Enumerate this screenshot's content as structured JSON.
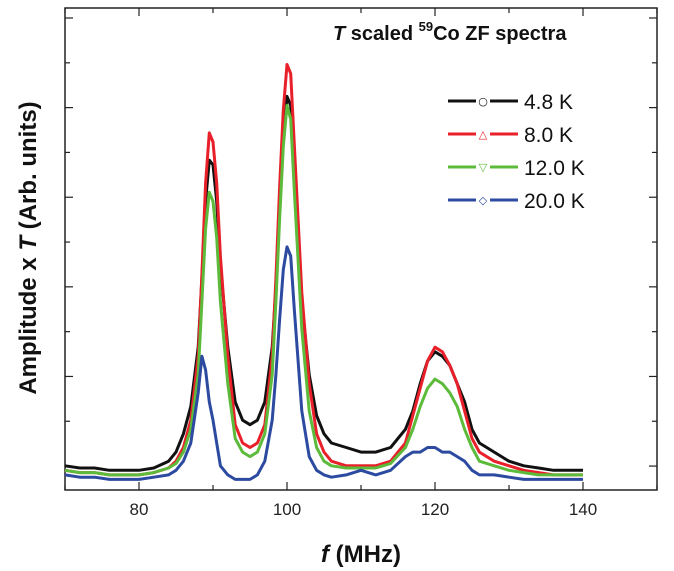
{
  "chart_data": {
    "type": "line",
    "title": {
      "italic_part": "T",
      "pre_sup": " scaled ",
      "sup": "59",
      "post_sup": "Co ZF spectra"
    },
    "xlabel": {
      "italic_part": "f",
      "rest": " (MHz)"
    },
    "ylabel": {
      "pre": "Amplitude x ",
      "italic_part": "T",
      "post": " (Arb. units)"
    },
    "xlim": [
      70,
      150
    ],
    "ylim": [
      0,
      100
    ],
    "x_ticks": [
      80,
      100,
      120,
      140
    ],
    "y_tick_labels_shown": false,
    "legend_position": "top-right",
    "series": [
      {
        "name": "4.8 K",
        "color": "#111111",
        "marker": "○",
        "x": [
          70,
          72,
          74,
          76,
          78,
          80,
          82,
          84,
          85,
          86,
          87,
          88,
          88.5,
          89,
          89.5,
          90,
          90.5,
          91,
          92,
          93,
          94,
          95,
          96,
          97,
          98,
          98.5,
          99,
          99.5,
          100,
          100.5,
          101,
          102,
          103,
          104,
          105,
          106,
          108,
          110,
          112,
          114,
          116,
          117,
          118,
          119,
          120,
          121,
          122,
          123,
          124,
          125,
          126,
          128,
          130,
          132,
          134,
          136,
          138,
          140
        ],
        "y": [
          4,
          3.5,
          3.5,
          3,
          3,
          3,
          3.5,
          5,
          7,
          11,
          17,
          30,
          45,
          62,
          71,
          70,
          62,
          48,
          30,
          18,
          14,
          13,
          14,
          18,
          30,
          43,
          60,
          76,
          85,
          83,
          68,
          40,
          24,
          15,
          11,
          9,
          8,
          7,
          7,
          8,
          12,
          16,
          22,
          27,
          29,
          28,
          26,
          22,
          18,
          12,
          9,
          7,
          5,
          4,
          3.5,
          3,
          3,
          3
        ]
      },
      {
        "name": "8.0 K",
        "color": "#e8202a",
        "marker": "△",
        "x": [
          70,
          72,
          74,
          76,
          78,
          80,
          82,
          84,
          85,
          86,
          87,
          88,
          88.5,
          89,
          89.5,
          90,
          90.5,
          91,
          92,
          93,
          94,
          95,
          96,
          97,
          98,
          98.5,
          99,
          99.5,
          100,
          100.5,
          101,
          102,
          103,
          104,
          105,
          106,
          108,
          110,
          112,
          114,
          116,
          117,
          118,
          119,
          120,
          121,
          122,
          123,
          124,
          125,
          126,
          128,
          130,
          132,
          134,
          136,
          138,
          140
        ],
        "y": [
          3,
          2.5,
          2.5,
          2,
          2,
          2,
          2.5,
          3.5,
          5,
          8,
          14,
          28,
          46,
          66,
          77,
          75,
          66,
          50,
          28,
          13,
          9,
          8,
          9,
          13,
          28,
          45,
          65,
          82,
          92,
          90,
          74,
          42,
          22,
          11,
          7,
          5,
          4,
          4,
          4,
          5,
          9,
          15,
          21,
          27,
          30,
          29,
          26,
          22,
          16,
          10,
          7,
          5,
          4,
          3,
          2.5,
          2,
          2,
          2
        ]
      },
      {
        "name": "12.0 K",
        "color": "#5cbb3a",
        "marker": "▽",
        "x": [
          70,
          72,
          74,
          76,
          78,
          80,
          82,
          84,
          85,
          86,
          87,
          88,
          88.5,
          89,
          89.5,
          90,
          90.5,
          91,
          92,
          93,
          94,
          95,
          96,
          97,
          98,
          98.5,
          99,
          99.5,
          100,
          100.5,
          101,
          102,
          103,
          104,
          105,
          106,
          108,
          110,
          112,
          114,
          116,
          117,
          118,
          119,
          120,
          121,
          122,
          123,
          124,
          125,
          126,
          128,
          130,
          132,
          134,
          136,
          138,
          140
        ],
        "y": [
          3,
          2.5,
          2.5,
          2,
          2,
          2,
          2.5,
          3.5,
          4.5,
          7,
          12,
          24,
          40,
          56,
          64,
          62,
          54,
          40,
          22,
          10,
          7,
          6,
          7,
          11,
          24,
          40,
          58,
          74,
          83,
          80,
          64,
          34,
          16,
          8,
          5,
          4,
          3.5,
          3.5,
          3.5,
          4.5,
          8,
          12,
          17,
          21,
          23,
          22,
          20,
          17,
          12,
          8,
          5,
          4,
          3,
          2.5,
          2,
          2,
          2,
          2
        ]
      },
      {
        "name": "20.0 K",
        "color": "#2c4aa0",
        "marker": "◇",
        "x": [
          70,
          72,
          74,
          76,
          78,
          80,
          82,
          84,
          85,
          86,
          87,
          88,
          88.5,
          89,
          89.5,
          90,
          90.5,
          91,
          92,
          93,
          94,
          95,
          96,
          97,
          98,
          98.5,
          99,
          99.5,
          100,
          100.5,
          101,
          102,
          103,
          104,
          105,
          106,
          108,
          110,
          112,
          114,
          116,
          117,
          118,
          119,
          120,
          121,
          122,
          123,
          124,
          125,
          126,
          128,
          130,
          132,
          134,
          136,
          138,
          140
        ],
        "y": [
          2,
          1.5,
          1.5,
          1,
          1,
          1,
          1.5,
          2,
          3,
          5,
          9,
          20,
          28,
          25,
          18,
          14,
          9,
          4,
          2,
          1,
          1,
          1,
          2,
          5,
          14,
          24,
          36,
          47,
          52,
          50,
          38,
          16,
          6,
          3,
          2,
          1.5,
          2,
          3,
          2,
          3,
          6,
          7,
          7,
          8,
          8,
          7,
          7,
          6,
          5,
          3,
          2,
          2,
          1.5,
          1,
          1,
          1,
          1,
          1
        ]
      }
    ]
  }
}
